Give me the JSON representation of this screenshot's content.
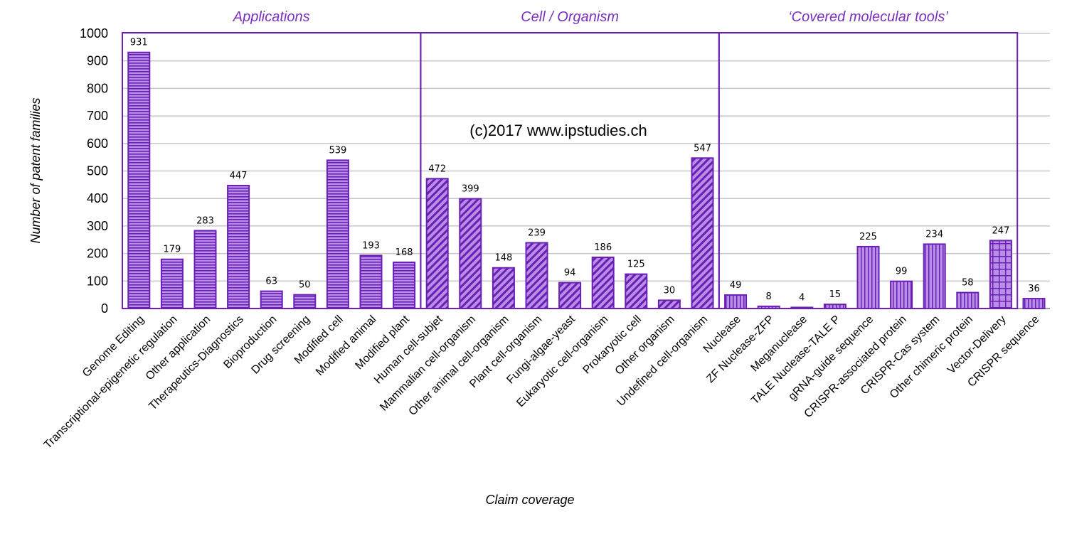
{
  "colors": {
    "bar_fill": "#b98ee6",
    "bar_stroke": "#6a1fb5",
    "pattern": "#6a1fb5",
    "group_border": "#6a1fb5",
    "group_title": "#7a2fbf",
    "grid": "#c8c8c8"
  },
  "watermark": "(c)2017 www.ipstudies.ch",
  "chart_data": {
    "type": "bar",
    "title": "",
    "xlabel": "Claim coverage",
    "ylabel": "Number of patent families",
    "ylim": [
      0,
      1000
    ],
    "yticks": [
      0,
      100,
      200,
      300,
      400,
      500,
      600,
      700,
      800,
      900,
      1000
    ],
    "grid": true,
    "groups": [
      {
        "title": "Applications",
        "pattern": "horizontal-stripes",
        "categories": [
          "Genome Editing",
          "Transcriptional-epigenetic regulation",
          "Other application",
          "Therapeutics-Diagnostics",
          "Bioproduction",
          "Drug screening",
          "Modified cell",
          "Modified animal",
          "Modified plant"
        ],
        "values": [
          931,
          179,
          283,
          447,
          63,
          50,
          539,
          193,
          168
        ]
      },
      {
        "title": "Cell / Organism",
        "pattern": "diagonal-stripes",
        "categories": [
          "Human cell-subjet",
          "Mammalian cell-organism",
          "Other animal cell-organism",
          "Plant cell-organism",
          "Fungi-algae-yeast",
          "Eukaryotic cell-organism",
          "Prokaryotic cell",
          "Other organism",
          "Undefined cell-organism"
        ],
        "values": [
          472,
          399,
          148,
          239,
          94,
          186,
          125,
          30,
          547
        ]
      },
      {
        "title": "‘Covered molecular tools’",
        "pattern": "vertical-stripes",
        "categories": [
          "Nuclease",
          "ZF Nuclease-ZFP",
          "Meganuclease",
          "TALE Nuclease-TALE P",
          "gRNA-guide sequence",
          "CRISPR-associated protein",
          "CRISPR-Cas system",
          "Other chimeric protein",
          "Vector-Delivery"
        ],
        "values": [
          49,
          8,
          4,
          15,
          225,
          99,
          234,
          58,
          247
        ],
        "patterns": [
          "vertical-stripes",
          "vertical-stripes",
          "vertical-stripes",
          "vertical-stripes",
          "vertical-stripes",
          "vertical-stripes",
          "vertical-stripes",
          "vertical-stripes",
          "grid"
        ]
      },
      {
        "title": "",
        "pattern": "vertical-stripes",
        "categories": [
          "CRISPR sequence"
        ],
        "values": [
          36
        ]
      }
    ]
  }
}
